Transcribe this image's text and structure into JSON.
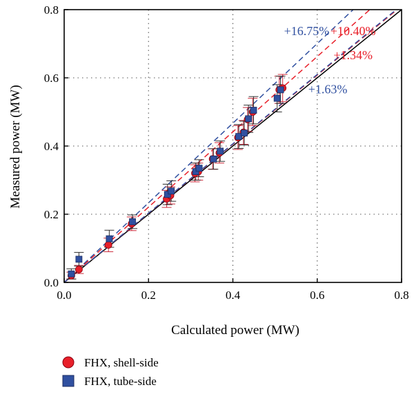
{
  "chart_data": {
    "type": "scatter",
    "xlabel": "Calculated power (MW)",
    "ylabel": "Measured power (MW)",
    "xlim": [
      0,
      0.8
    ],
    "ylim": [
      0,
      0.8
    ],
    "xticks": [
      "0.0",
      "0.2",
      "0.4",
      "0.6",
      "0.8"
    ],
    "yticks": [
      "0.0",
      "0.2",
      "0.4",
      "0.6",
      "0.8"
    ],
    "grid": "dotted",
    "legend_position": "bottom-left, below plot",
    "series": [
      {
        "name": "FHX, shell-side",
        "marker": "circle",
        "color": "#e8202a",
        "points": [
          {
            "x": 0.017,
            "y": 0.02,
            "err": 0.01
          },
          {
            "x": 0.035,
            "y": 0.038,
            "err": 0.012
          },
          {
            "x": 0.105,
            "y": 0.11,
            "err": 0.02
          },
          {
            "x": 0.16,
            "y": 0.172,
            "err": 0.02
          },
          {
            "x": 0.243,
            "y": 0.245,
            "err": 0.025
          },
          {
            "x": 0.252,
            "y": 0.255,
            "err": 0.025
          },
          {
            "x": 0.31,
            "y": 0.32,
            "err": 0.025
          },
          {
            "x": 0.318,
            "y": 0.325,
            "err": 0.025
          },
          {
            "x": 0.352,
            "y": 0.362,
            "err": 0.03
          },
          {
            "x": 0.368,
            "y": 0.38,
            "err": 0.03
          },
          {
            "x": 0.412,
            "y": 0.425,
            "err": 0.035
          },
          {
            "x": 0.425,
            "y": 0.44,
            "err": 0.035
          },
          {
            "x": 0.435,
            "y": 0.478,
            "err": 0.035
          },
          {
            "x": 0.447,
            "y": 0.5,
            "err": 0.04
          },
          {
            "x": 0.51,
            "y": 0.565,
            "err": 0.04
          },
          {
            "x": 0.518,
            "y": 0.57,
            "err": 0.04
          }
        ]
      },
      {
        "name": "FHX, tube-side",
        "marker": "square",
        "color": "#3050a0",
        "points": [
          {
            "x": 0.017,
            "y": 0.025,
            "err": 0.015
          },
          {
            "x": 0.035,
            "y": 0.068,
            "err": 0.02
          },
          {
            "x": 0.107,
            "y": 0.128,
            "err": 0.025
          },
          {
            "x": 0.162,
            "y": 0.178,
            "err": 0.02
          },
          {
            "x": 0.245,
            "y": 0.258,
            "err": 0.03
          },
          {
            "x": 0.254,
            "y": 0.268,
            "err": 0.03
          },
          {
            "x": 0.312,
            "y": 0.325,
            "err": 0.025
          },
          {
            "x": 0.32,
            "y": 0.335,
            "err": 0.025
          },
          {
            "x": 0.354,
            "y": 0.362,
            "err": 0.03
          },
          {
            "x": 0.37,
            "y": 0.385,
            "err": 0.03
          },
          {
            "x": 0.414,
            "y": 0.428,
            "err": 0.035
          },
          {
            "x": 0.427,
            "y": 0.438,
            "err": 0.035
          },
          {
            "x": 0.437,
            "y": 0.48,
            "err": 0.04
          },
          {
            "x": 0.449,
            "y": 0.505,
            "err": 0.04
          },
          {
            "x": 0.505,
            "y": 0.54,
            "err": 0.04
          },
          {
            "x": 0.513,
            "y": 0.565,
            "err": 0.04
          }
        ]
      }
    ],
    "reference_lines": [
      {
        "slope": 1.0,
        "style": "solid",
        "color": "#000000"
      },
      {
        "slope": 1.1675,
        "style": "dashed",
        "color": "#3050a0",
        "label": "+16.75%"
      },
      {
        "slope": 1.104,
        "style": "dashed",
        "color": "#e8202a",
        "label": "+10.40%"
      },
      {
        "slope": 1.0134,
        "style": "dashed",
        "color": "#e8202a",
        "label": "+1.34%"
      },
      {
        "slope": 1.0163,
        "style": "dashed",
        "color": "#3050a0",
        "label": "+1.63%"
      }
    ],
    "annotations": [
      {
        "text": "+16.75%",
        "color": "#3050a0",
        "x": 0.575,
        "y": 0.725
      },
      {
        "text": "+10.40%",
        "color": "#e8202a",
        "x": 0.685,
        "y": 0.725
      },
      {
        "text": "+1.34%",
        "color": "#e8202a",
        "x": 0.685,
        "y": 0.655
      },
      {
        "text": "+1.63%",
        "color": "#3050a0",
        "x": 0.625,
        "y": 0.555
      }
    ]
  }
}
